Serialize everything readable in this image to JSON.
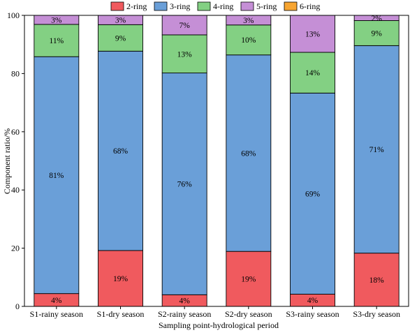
{
  "chart_data": {
    "type": "bar",
    "stacked": true,
    "xlabel": "Sampling point-hydrological period",
    "ylabel": "Component ratio/%",
    "ylim": [
      0,
      100
    ],
    "yticks": [
      0,
      20,
      40,
      60,
      80,
      100
    ],
    "legend_position": "top",
    "grid": false,
    "categories": [
      "S1-rainy season",
      "S1-dry season",
      "S2-rainy season",
      "S2-dry season",
      "S3-rainy season",
      "S3-dry season"
    ],
    "series": [
      {
        "name": "2-ring",
        "color": "#f05a5e",
        "values": [
          4.4,
          19.2,
          4.0,
          18.9,
          4.2,
          18.3
        ],
        "labels": [
          "4%",
          "19%",
          "4%",
          "19%",
          "4%",
          "18%"
        ]
      },
      {
        "name": "3-ring",
        "color": "#6a9fd8",
        "values": [
          81.4,
          68.5,
          76.2,
          67.5,
          69.1,
          71.3
        ],
        "labels": [
          "81%",
          "68%",
          "76%",
          "68%",
          "69%",
          "71%"
        ]
      },
      {
        "name": "4-ring",
        "color": "#83d083",
        "values": [
          11.1,
          9.1,
          13.1,
          10.3,
          14.0,
          8.6
        ],
        "labels": [
          "11%",
          "9%",
          "13%",
          "10%",
          "14%",
          "9%"
        ]
      },
      {
        "name": "5-ring",
        "color": "#c58fd6",
        "values": [
          3.1,
          3.2,
          6.7,
          3.3,
          12.7,
          1.8
        ],
        "labels": [
          "3%",
          "3%",
          "7%",
          "3%",
          "13%",
          "2%"
        ]
      },
      {
        "name": "6-ring",
        "color": "#f7a531",
        "values": [
          0,
          0,
          0,
          0,
          0,
          0
        ],
        "labels": [
          "",
          "",
          "",
          "",
          "",
          ""
        ]
      }
    ]
  }
}
